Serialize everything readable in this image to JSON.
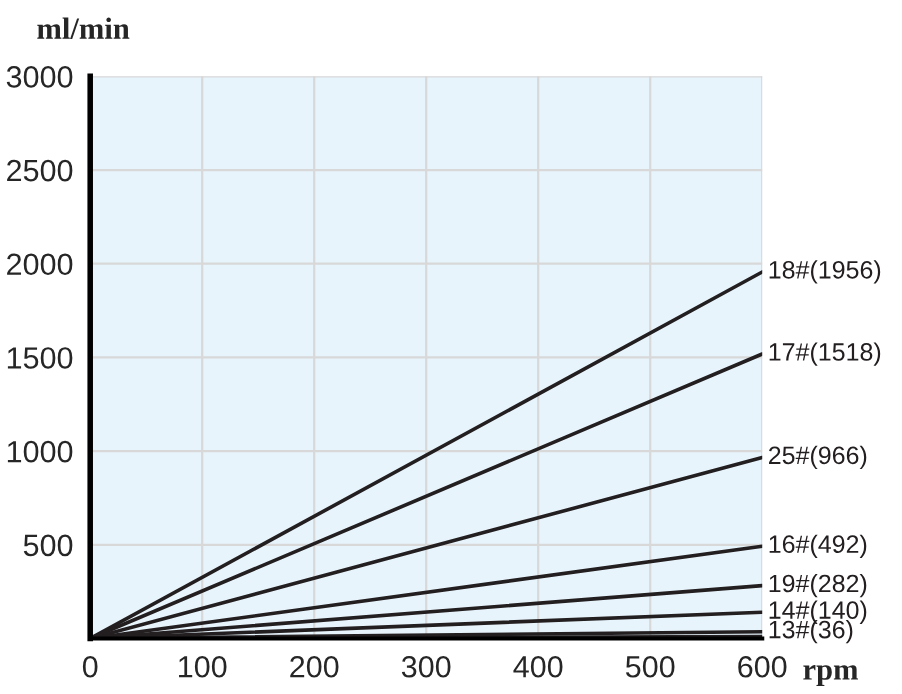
{
  "chart_data": {
    "type": "line",
    "xlabel": "rpm",
    "ylabel": "ml/min",
    "x": [
      0,
      600
    ],
    "series": [
      {
        "name": "18#(1956)",
        "color": "#231f20",
        "values": [
          0,
          1956
        ]
      },
      {
        "name": "17#(1518)",
        "color": "#231f20",
        "values": [
          0,
          1518
        ]
      },
      {
        "name": "25#(966)",
        "color": "#231f20",
        "values": [
          0,
          966
        ]
      },
      {
        "name": "16#(492)",
        "color": "#231f20",
        "values": [
          0,
          492
        ]
      },
      {
        "name": "19#(282)",
        "color": "#231f20",
        "values": [
          0,
          282
        ]
      },
      {
        "name": "14#(140)",
        "color": "#231f20",
        "values": [
          0,
          140
        ]
      },
      {
        "name": "13#(36)",
        "color": "#231f20",
        "values": [
          0,
          36
        ]
      },
      {
        "color": "#231f20",
        "values": [
          0,
          10
        ]
      }
    ],
    "xlim": [
      0,
      600
    ],
    "ylim": [
      0,
      3000
    ],
    "xticks": [
      0,
      100,
      200,
      300,
      400,
      500,
      600
    ],
    "yticks": [
      {
        "value": 0,
        "label": null
      },
      500,
      1000,
      1500,
      2000,
      2500,
      3000
    ],
    "grid": true,
    "legend": false,
    "marker": "none",
    "line_style": "solid"
  }
}
